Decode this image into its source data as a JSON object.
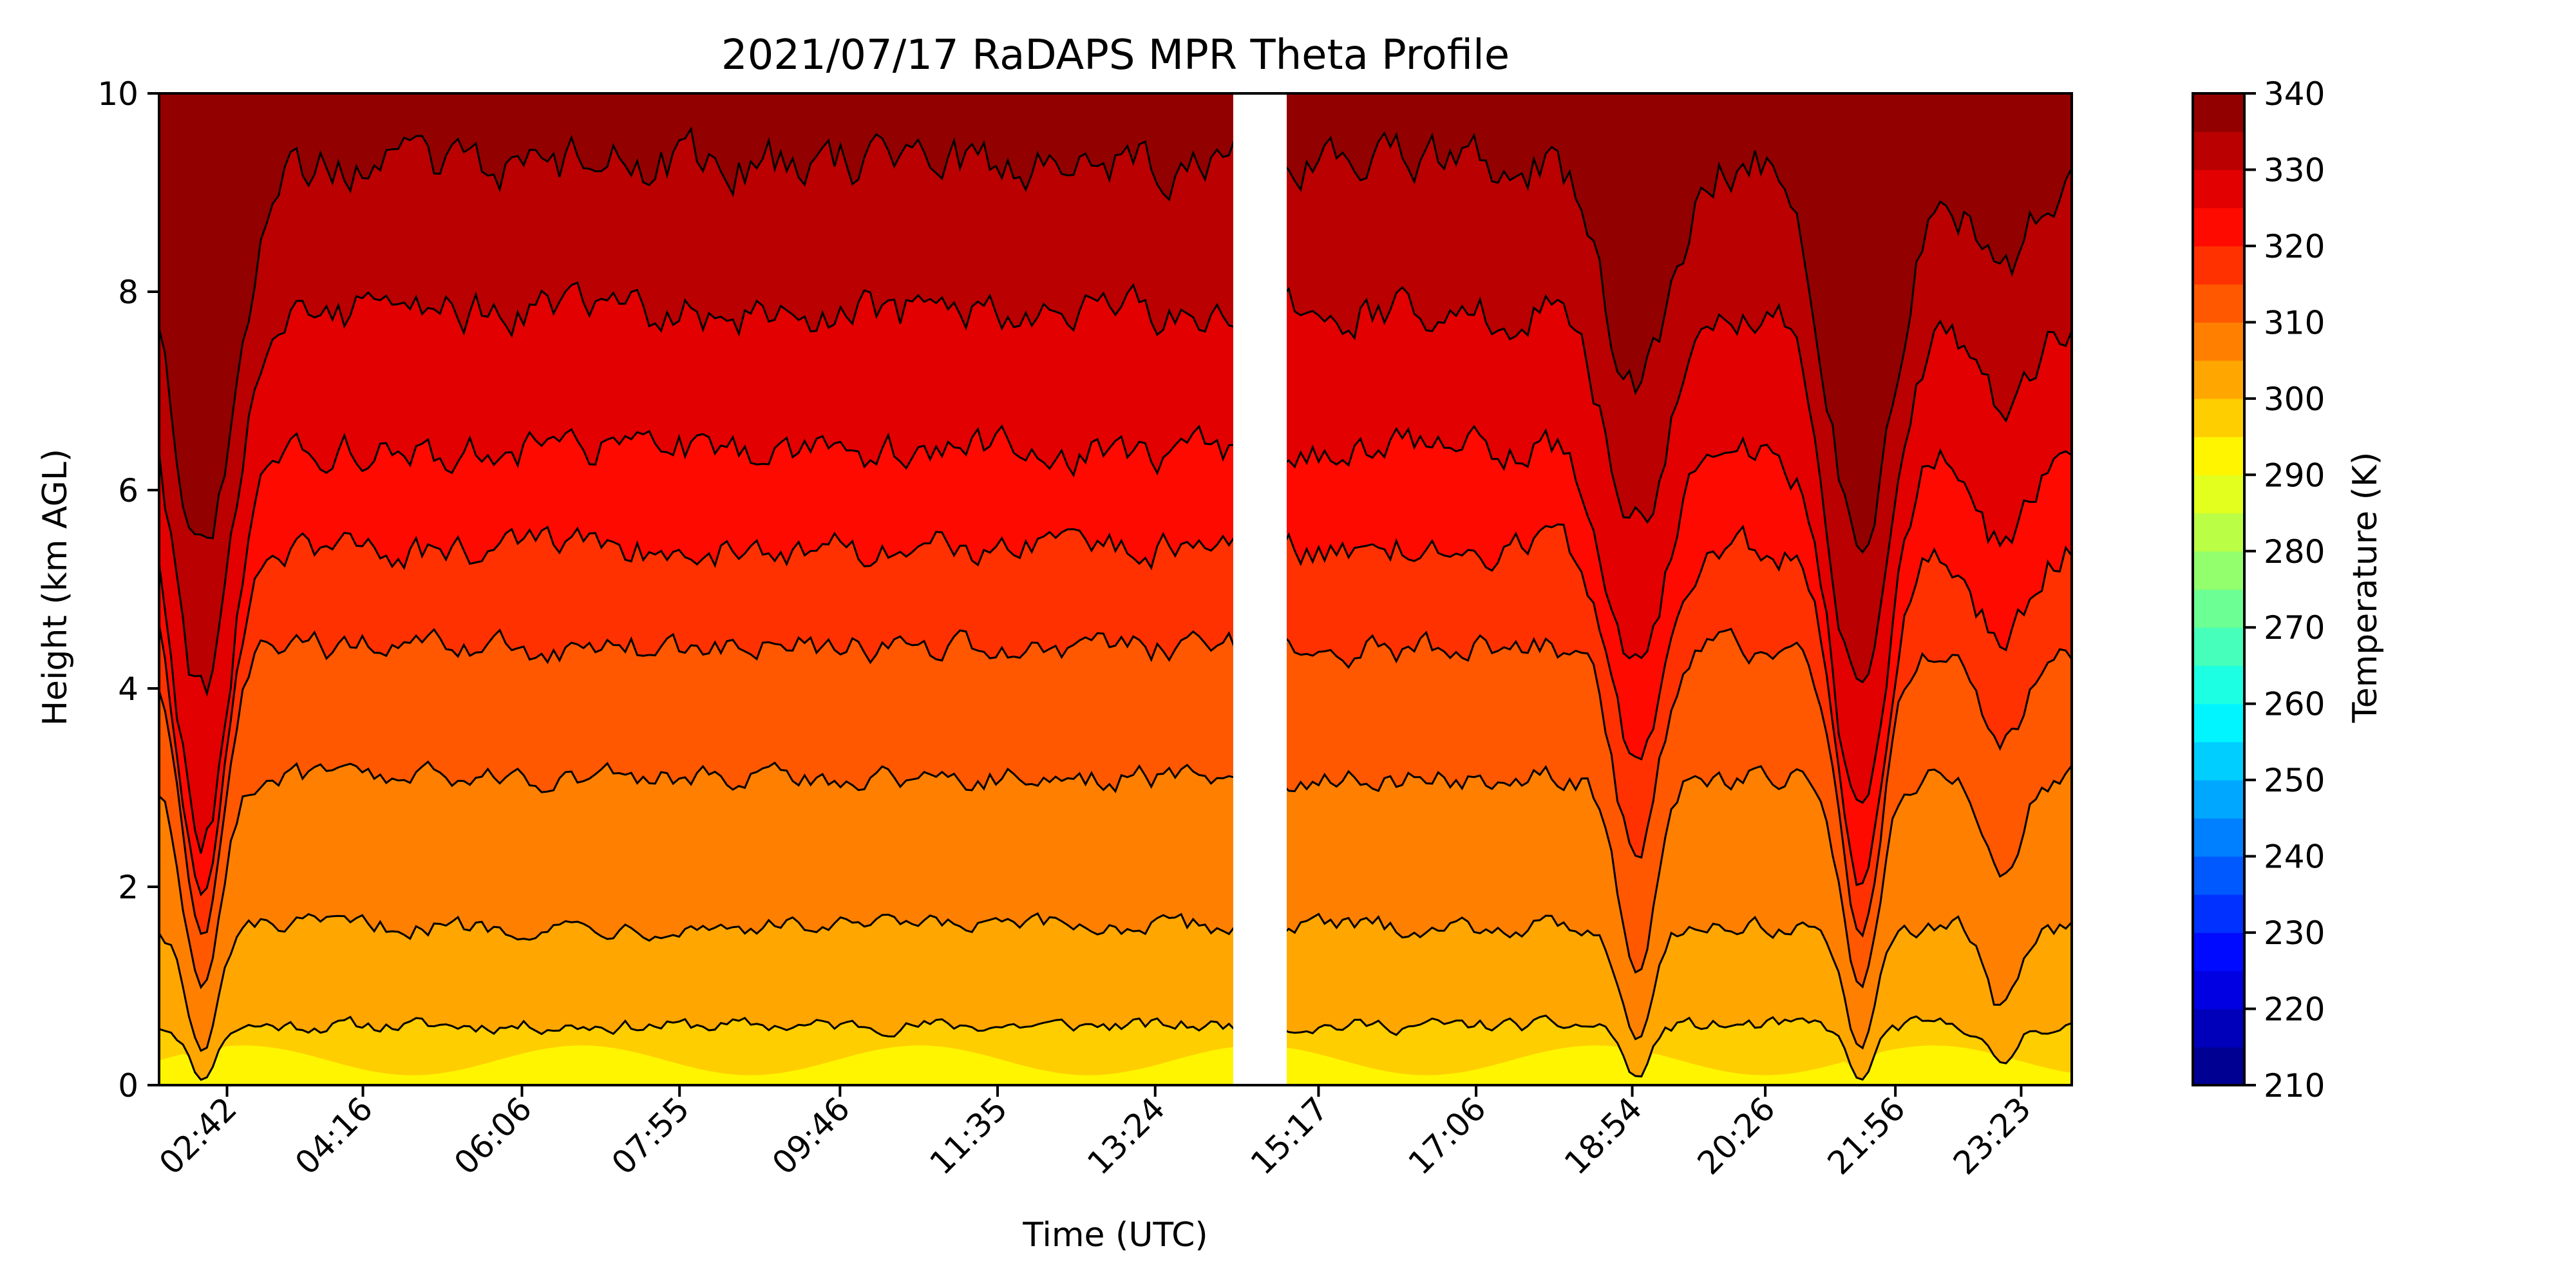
{
  "chart_data": {
    "type": "heatmap",
    "title": "2021/07/17 RaDAPS MPR Theta Profile",
    "xlabel": "Time (UTC)",
    "ylabel": "Height (km AGL)",
    "colorbar_label": "Temperature (K)",
    "xlim": [
      "01:55",
      "23:58"
    ],
    "ylim": [
      0,
      10
    ],
    "x_ticks": [
      "02:42",
      "04:16",
      "06:06",
      "07:55",
      "09:46",
      "11:35",
      "13:24",
      "15:17",
      "17:06",
      "18:54",
      "20:26",
      "21:56",
      "23:23"
    ],
    "y_ticks": [
      0,
      2,
      4,
      6,
      8,
      10
    ],
    "colorbar_ticks": [
      210,
      220,
      230,
      240,
      250,
      260,
      270,
      280,
      290,
      300,
      310,
      320,
      330,
      340
    ],
    "colorbar_range": [
      210,
      340
    ],
    "colormap": "jet",
    "level_step": 5,
    "data_gap": {
      "start": "14:18",
      "end": "14:55"
    },
    "contour_levels_K": [
      300,
      305,
      310,
      315,
      320,
      325,
      330,
      335
    ],
    "contour_heights_km": [
      0.6,
      1.6,
      3.1,
      4.4,
      5.4,
      6.4,
      7.8,
      9.3
    ],
    "features": [
      {
        "type": "dip",
        "time": "02:25",
        "depth_km": 6.8
      },
      {
        "type": "dip",
        "time": "18:57",
        "depth_km": 3.7
      },
      {
        "type": "dip",
        "time": "21:32",
        "depth_km": 6.5
      },
      {
        "type": "dip",
        "time": "23:10",
        "depth_km": 1.5
      }
    ],
    "colors": {
      "background": "#ffffff",
      "contour": "#000000"
    }
  }
}
